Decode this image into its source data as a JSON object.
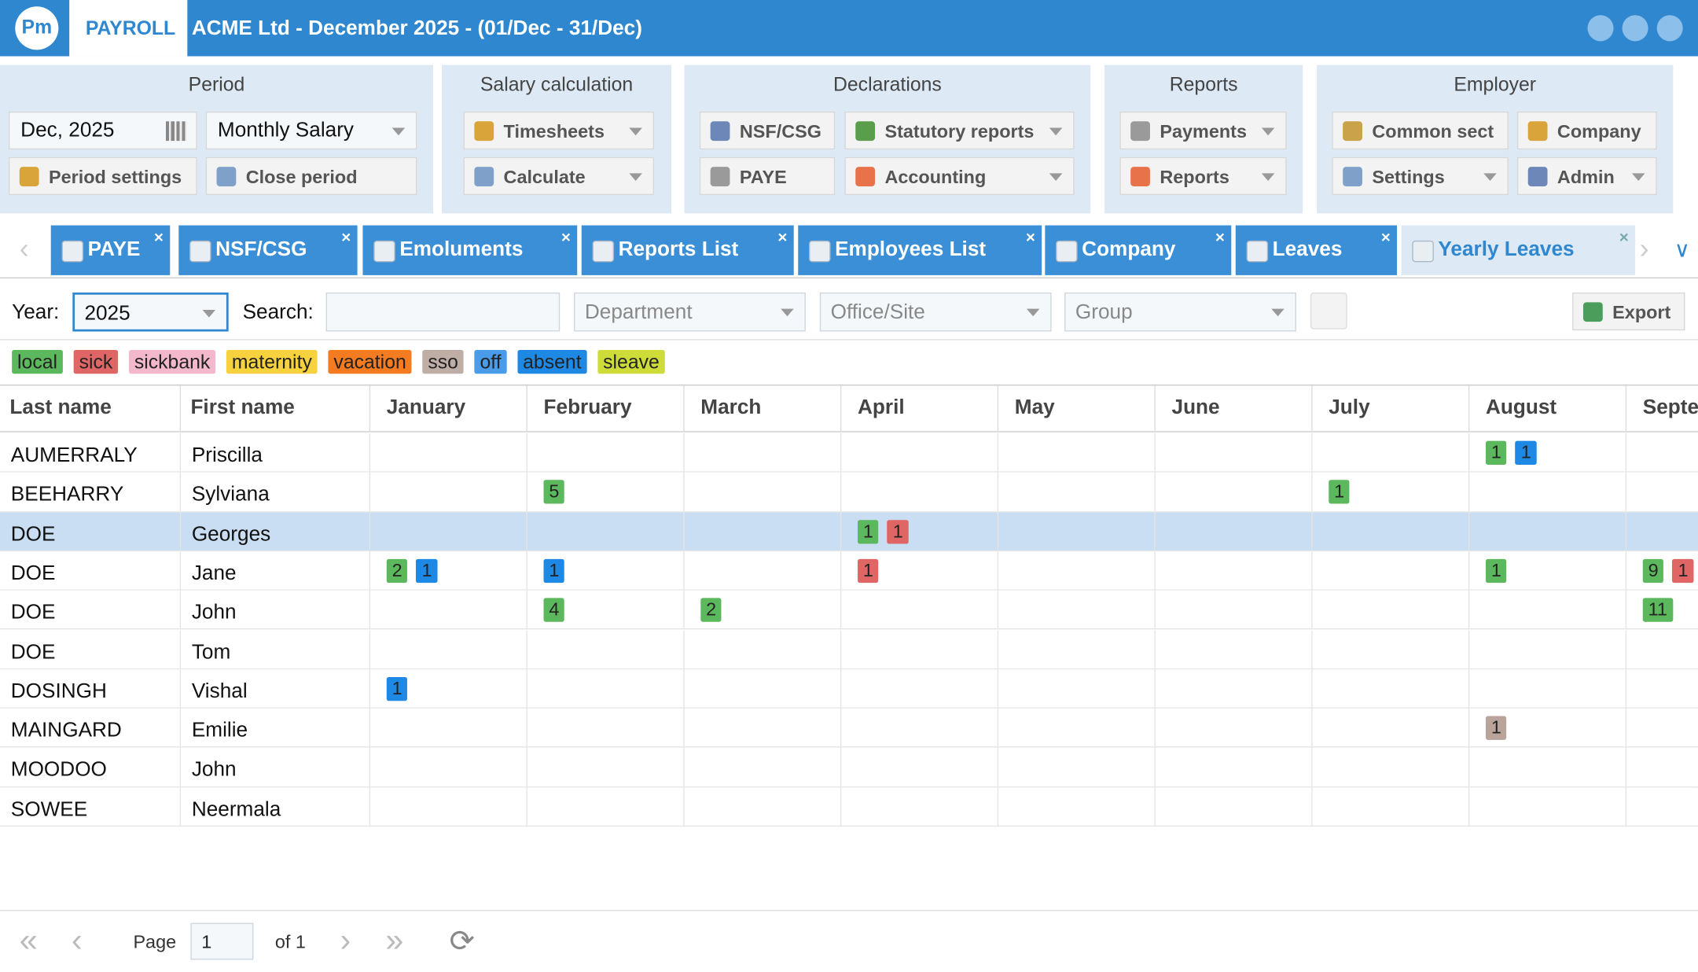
{
  "header": {
    "logo": "Pm",
    "module": "PAYROLL",
    "title": "ACME Ltd - December 2025 - (01/Dec - 31/Dec)"
  },
  "ribbon": [
    {
      "title": "Period",
      "buttons": [
        "Dec, 2025",
        "Monthly Salary",
        "Period settings",
        "Close period"
      ]
    },
    {
      "title": "Salary calculation",
      "buttons": [
        "Timesheets",
        "Calculate"
      ]
    },
    {
      "title": "Declarations",
      "buttons": [
        "NSF/CSG",
        "Statutory reports",
        "PAYE",
        "Accounting"
      ]
    },
    {
      "title": "Reports",
      "buttons": [
        "Payments",
        "Reports"
      ]
    },
    {
      "title": "Employer",
      "buttons": [
        "Common sect",
        "Company",
        "Settings",
        "Admin"
      ]
    }
  ],
  "tabs": [
    "PAYE",
    "NSF/CSG",
    "Emoluments",
    "Reports List",
    "Employees List",
    "Company",
    "Leaves",
    "Yearly Leaves"
  ],
  "filters": {
    "year_label": "Year:",
    "year": "2025",
    "search_label": "Search:",
    "department": "Department",
    "office": "Office/Site",
    "group": "Group",
    "export": "Export"
  },
  "legend": [
    {
      "name": "local",
      "color": "#5cb85c"
    },
    {
      "name": "sick",
      "color": "#e06666"
    },
    {
      "name": "sickbank",
      "color": "#f4b8cc"
    },
    {
      "name": "maternity",
      "color": "#f7d23e"
    },
    {
      "name": "vacation",
      "color": "#f47b20"
    },
    {
      "name": "sso",
      "color": "#bfaea6"
    },
    {
      "name": "off",
      "color": "#4a9be8"
    },
    {
      "name": "absent",
      "color": "#1e88e5"
    },
    {
      "name": "sleave",
      "color": "#cddc39"
    }
  ],
  "table": {
    "columns": [
      "Last name",
      "First name",
      "January",
      "February",
      "March",
      "April",
      "May",
      "June",
      "July",
      "August",
      "September"
    ],
    "rows": [
      {
        "last": "AUMERRALY",
        "first": "Priscilla",
        "months": [
          [],
          [],
          [],
          [],
          [],
          [],
          [],
          [
            {
              "count": 1,
              "color": "#5cb85c"
            },
            {
              "count": 1,
              "color": "#1e88e5"
            }
          ],
          []
        ]
      },
      {
        "last": "BEEHARRY",
        "first": "Sylviana",
        "months": [
          [],
          [
            {
              "count": 5,
              "color": "#5cb85c"
            }
          ],
          [],
          [],
          [],
          [],
          [
            {
              "count": 1,
              "color": "#5cb85c"
            }
          ],
          [],
          []
        ]
      },
      {
        "last": "DOE",
        "first": "Georges",
        "months": [
          [],
          [],
          [],
          [
            {
              "count": 1,
              "color": "#5cb85c"
            },
            {
              "count": 1,
              "color": "#e06666"
            }
          ],
          [],
          [],
          [],
          [],
          []
        ]
      },
      {
        "last": "DOE",
        "first": "Jane",
        "months": [
          [
            {
              "count": 2,
              "color": "#5cb85c"
            },
            {
              "count": 1,
              "color": "#1e88e5"
            }
          ],
          [
            {
              "count": 1,
              "color": "#1e88e5"
            }
          ],
          [],
          [
            {
              "count": 1,
              "color": "#e06666"
            }
          ],
          [],
          [],
          [],
          [
            {
              "count": 1,
              "color": "#5cb85c"
            }
          ],
          [
            {
              "count": 9,
              "color": "#5cb85c"
            },
            {
              "count": 1,
              "color": "#e06666"
            }
          ]
        ]
      },
      {
        "last": "DOE",
        "first": "John",
        "months": [
          [],
          [
            {
              "count": 4,
              "color": "#5cb85c"
            }
          ],
          [
            {
              "count": 2,
              "color": "#5cb85c"
            }
          ],
          [],
          [],
          [],
          [],
          [],
          [
            {
              "count": 11,
              "color": "#5cb85c"
            }
          ]
        ]
      },
      {
        "last": "DOE",
        "first": "Tom",
        "months": [
          [],
          [],
          [],
          [],
          [],
          [],
          [],
          [],
          []
        ]
      },
      {
        "last": "DOSINGH",
        "first": "Vishal",
        "months": [
          [
            {
              "count": 1,
              "color": "#1e88e5"
            }
          ],
          [],
          [],
          [],
          [],
          [],
          [],
          [],
          []
        ]
      },
      {
        "last": "MAINGARD",
        "first": "Emilie",
        "months": [
          [],
          [],
          [],
          [],
          [],
          [],
          [],
          [
            {
              "count": 1,
              "color": "#b9a39a"
            }
          ],
          []
        ]
      },
      {
        "last": "MOODOO",
        "first": "John",
        "months": [
          [],
          [],
          [],
          [],
          [],
          [],
          [],
          [],
          []
        ]
      },
      {
        "last": "SOWEE",
        "first": "Neermala",
        "months": [
          [],
          [],
          [],
          [],
          [],
          [],
          [],
          [],
          []
        ]
      }
    ]
  },
  "pager": {
    "page_label": "Page",
    "page": "1",
    "of": "of 1"
  }
}
